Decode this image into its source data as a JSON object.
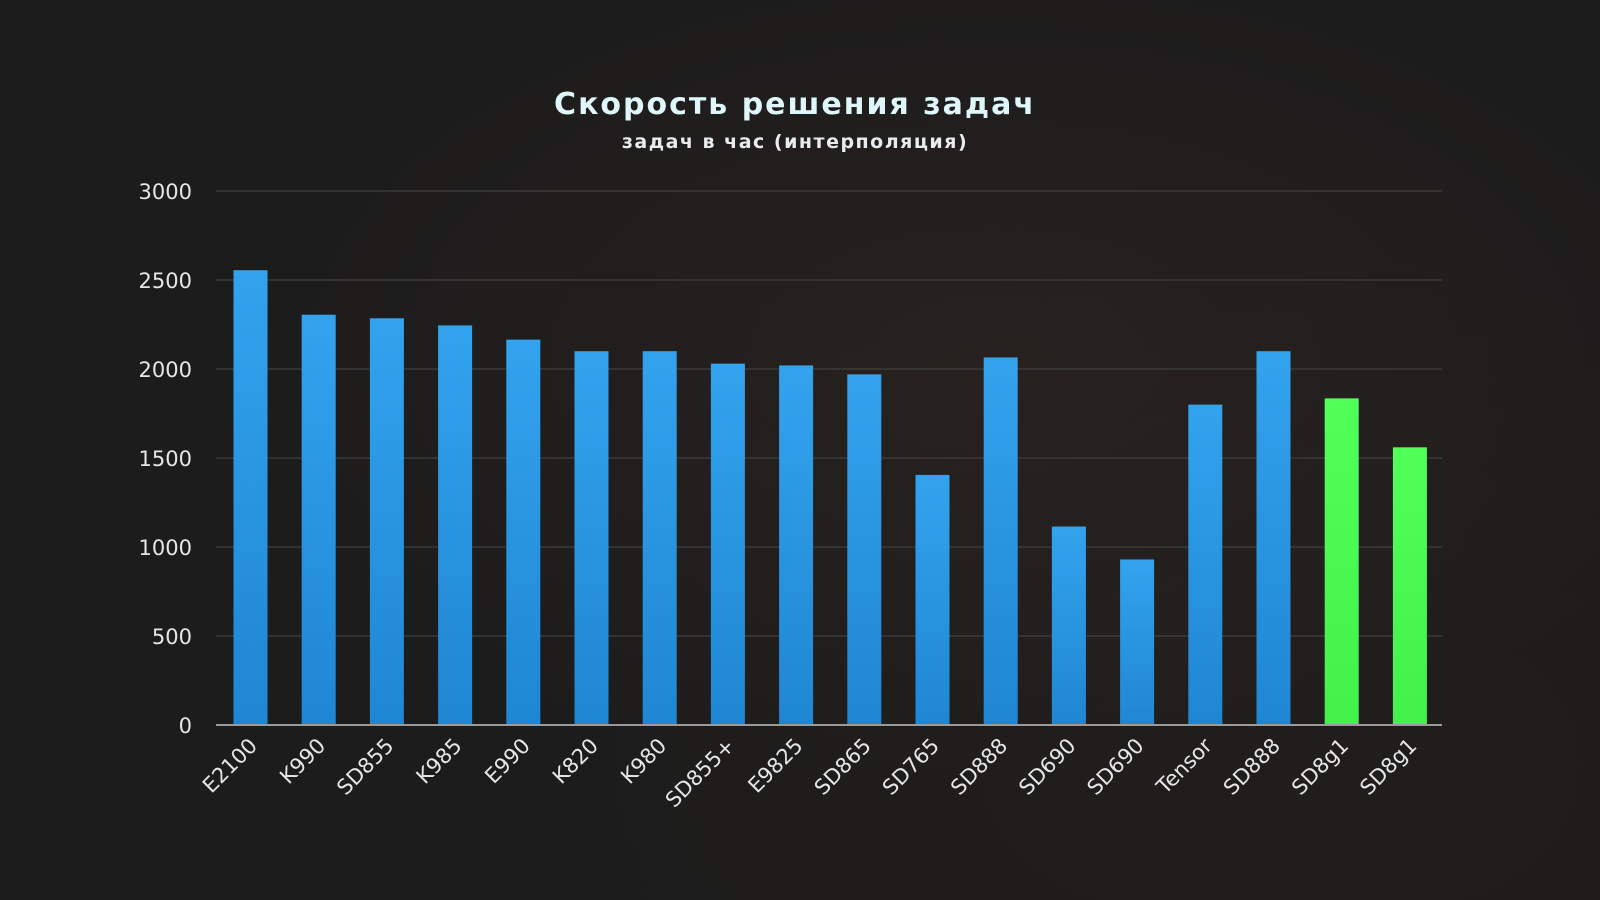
{
  "chart_data": {
    "type": "bar",
    "title": "Скорость решения задач",
    "subtitle": "задач в час (интерполяция)",
    "xlabel": "",
    "ylabel": "",
    "ylim": [
      0,
      3000
    ],
    "yticks": [
      "0",
      "500",
      "1000",
      "1500",
      "2000",
      "2500",
      "3000"
    ],
    "grid": true,
    "categories": [
      "E2100",
      "K990",
      "SD855",
      "K985",
      "E990",
      "K820",
      "K980",
      "SD855+",
      "E9825",
      "SD865",
      "SD765",
      "SD888",
      "SD690",
      "SD690",
      "Tensor",
      "SD888",
      "SD8g1",
      "SD8g1"
    ],
    "values": [
      2555,
      2305,
      2285,
      2245,
      2165,
      2100,
      2100,
      2030,
      2020,
      1970,
      1405,
      2065,
      1115,
      930,
      1800,
      2100,
      1835,
      1560
    ],
    "bar_colors": [
      "#2b9ae8",
      "#2b9ae8",
      "#2b9ae8",
      "#2b9ae8",
      "#2b9ae8",
      "#2b9ae8",
      "#2b9ae8",
      "#2b9ae8",
      "#2b9ae8",
      "#2b9ae8",
      "#2b9ae8",
      "#2b9ae8",
      "#2b9ae8",
      "#2b9ae8",
      "#2b9ae8",
      "#2b9ae8",
      "#4cff52",
      "#4cff52"
    ],
    "colors": {
      "blue": "#2b9ae8",
      "green": "#4cff52",
      "background": "#1c1c1c"
    }
  }
}
